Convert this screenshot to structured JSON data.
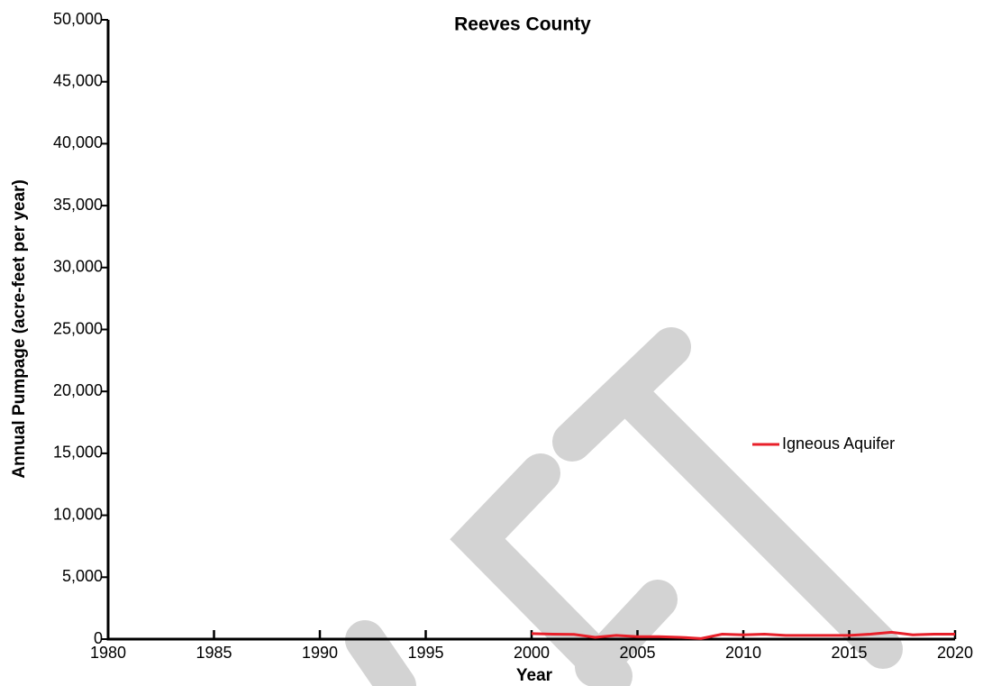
{
  "chart_data": {
    "type": "line",
    "title": "Reeves County",
    "x_label": "Year",
    "y_label": "Annual Pumpage (acre-feet per year)",
    "x": [
      2000,
      2001,
      2002,
      2003,
      2004,
      2005,
      2006,
      2007,
      2008,
      2009,
      2010,
      2011,
      2012,
      2013,
      2014,
      2015,
      2016,
      2017,
      2018,
      2019,
      2020
    ],
    "series": [
      {
        "name": "Igneous Aquifer",
        "color": "#e8202a",
        "values": [
          450,
          400,
          380,
          150,
          300,
          200,
          200,
          150,
          50,
          400,
          350,
          400,
          300,
          300,
          300,
          300,
          400,
          550,
          350,
          400,
          400
        ]
      }
    ],
    "xlim": [
      1980,
      2020
    ],
    "xticks": [
      1980,
      1985,
      1990,
      1995,
      2000,
      2005,
      2010,
      2015,
      2020
    ],
    "ylim": [
      0,
      50000
    ],
    "yticks": [
      0,
      {
        "value": 5000,
        "label": "5,000"
      },
      {
        "value": 10000,
        "label": "10,000"
      },
      {
        "value": 15000,
        "label": "15,000"
      },
      {
        "value": 20000,
        "label": "20,000"
      },
      {
        "value": 25000,
        "label": "25,000"
      },
      {
        "value": 30000,
        "label": "30,000"
      },
      {
        "value": 35000,
        "label": "35,000"
      },
      {
        "value": 40000,
        "label": "40,000"
      },
      {
        "value": 45000,
        "label": "45,000"
      },
      {
        "value": 50000,
        "label": "50,000"
      }
    ],
    "legend": "right"
  }
}
